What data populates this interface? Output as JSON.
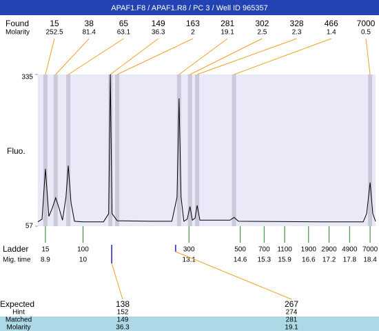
{
  "title": "APAF1.F8 / APAF1.R8 / PC 3 / Well ID 965357",
  "found": {
    "label": "Found",
    "molarity_label": "Molarity",
    "sizes": [
      15,
      38,
      65,
      149,
      163,
      281,
      302,
      328,
      466,
      7000
    ],
    "molarity": [
      252.5,
      81.4,
      63.1,
      36.3,
      2,
      19.1,
      2.5,
      2.3,
      1.4,
      0.5
    ],
    "x": [
      8.9,
      9.2,
      9.57,
      10.8,
      11.0,
      12.81,
      13.13,
      13.34,
      14.42,
      18.4
    ]
  },
  "chart_data": {
    "type": "line",
    "ylabel": "Fluo.",
    "color": "#000000",
    "ylim": [
      57,
      335
    ],
    "yticks": [
      57,
      335
    ],
    "xlim": [
      8.68,
      18.56
    ],
    "x": [
      8.68,
      8.8,
      8.9,
      9.0,
      9.1,
      9.2,
      9.3,
      9.4,
      9.5,
      9.57,
      9.65,
      9.75,
      10.0,
      10.6,
      10.75,
      10.8,
      10.85,
      11.0,
      12.0,
      12.6,
      12.75,
      12.81,
      12.87,
      12.95,
      13.05,
      13.13,
      13.2,
      13.28,
      13.34,
      13.42,
      14.0,
      14.3,
      14.42,
      14.55,
      17.0,
      18.2,
      18.3,
      18.4,
      18.48,
      18.56
    ],
    "values": [
      65,
      70,
      162,
      75,
      90,
      109,
      90,
      68,
      110,
      168,
      100,
      66,
      65,
      65,
      80,
      335,
      80,
      67,
      66,
      66,
      110,
      291,
      110,
      66,
      70,
      93,
      68,
      72,
      95,
      68,
      68,
      68,
      73,
      66,
      65,
      65,
      80,
      137,
      80,
      66
    ]
  },
  "ladder": {
    "label": "Ladder",
    "time_label": "Mig. time",
    "sizes": [
      15,
      100,
      300,
      500,
      700,
      1100,
      1900,
      2900,
      4900,
      7000
    ],
    "times": [
      8.9,
      10,
      13.1,
      14.6,
      15.3,
      15.9,
      16.6,
      17.2,
      17.8,
      18.4
    ]
  },
  "expected": {
    "label": "Expected",
    "hint_label": "Hint",
    "matched_label": "Matched",
    "molarity_label": "Molarity",
    "sizes": [
      138,
      267
    ],
    "hint": [
      152,
      274
    ],
    "matched": [
      149,
      281
    ],
    "molarity": [
      36.3,
      19.1
    ],
    "x": [
      10.84,
      12.71
    ]
  }
}
